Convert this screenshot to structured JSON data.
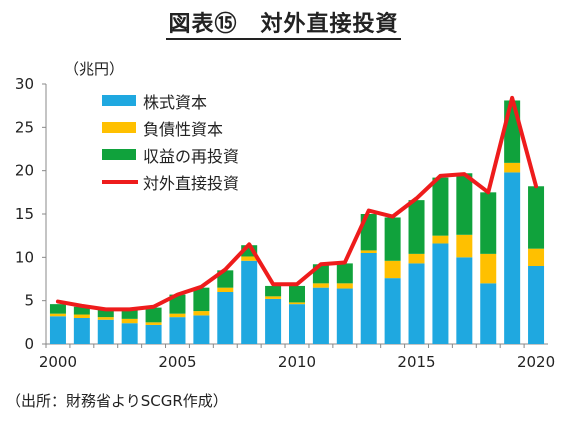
{
  "title": "図表⑮　対外直接投資",
  "unit_label": "（兆円）",
  "source": "（出所：財務省よりSCGR作成）",
  "chart_data": {
    "type": "bar",
    "stacked": true,
    "x": [
      2000,
      2001,
      2002,
      2003,
      2004,
      2005,
      2006,
      2007,
      2008,
      2009,
      2010,
      2011,
      2012,
      2013,
      2014,
      2015,
      2016,
      2017,
      2018,
      2019,
      2020
    ],
    "series": [
      {
        "name": "株式資本",
        "kind": "bar",
        "color": "#1fa8e0",
        "values": [
          3.2,
          3.0,
          2.8,
          2.4,
          2.2,
          3.1,
          3.3,
          6.0,
          9.6,
          5.2,
          4.6,
          6.5,
          6.4,
          10.5,
          7.6,
          9.3,
          11.6,
          10.0,
          7.0,
          19.8,
          9.0
        ]
      },
      {
        "name": "負債性資本",
        "kind": "bar",
        "color": "#ffc000",
        "values": [
          0.3,
          0.4,
          0.3,
          0.5,
          0.3,
          0.4,
          0.5,
          0.5,
          0.5,
          0.3,
          0.2,
          0.5,
          0.6,
          0.3,
          2.0,
          1.1,
          0.9,
          2.6,
          3.4,
          1.1,
          2.0
        ]
      },
      {
        "name": "収益の再投資",
        "kind": "bar",
        "color": "#10a23c",
        "values": [
          1.1,
          0.9,
          0.9,
          1.1,
          1.7,
          2.2,
          2.7,
          2.0,
          1.3,
          1.2,
          1.9,
          2.2,
          2.3,
          4.2,
          5.0,
          6.2,
          6.7,
          7.1,
          7.1,
          7.2,
          7.2
        ]
      },
      {
        "name": "対外直接投資",
        "kind": "line",
        "color": "#ee1c1c",
        "values": [
          4.9,
          4.4,
          4.0,
          4.0,
          4.3,
          5.7,
          6.6,
          8.6,
          11.5,
          6.9,
          6.9,
          9.2,
          9.4,
          15.4,
          14.7,
          16.8,
          19.4,
          19.6,
          17.5,
          28.4,
          18.2
        ]
      }
    ],
    "xticks": [
      2000,
      2005,
      2010,
      2015,
      2020
    ],
    "ylim": [
      0,
      30
    ],
    "yticks": [
      0,
      5,
      10,
      15,
      20,
      25,
      30
    ],
    "legend_position": "top-left",
    "grid": false
  }
}
